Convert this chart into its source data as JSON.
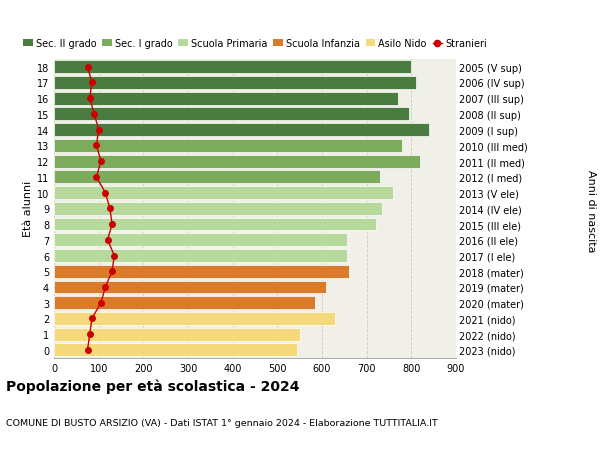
{
  "ages": [
    18,
    17,
    16,
    15,
    14,
    13,
    12,
    11,
    10,
    9,
    8,
    7,
    6,
    5,
    4,
    3,
    2,
    1,
    0
  ],
  "right_labels": [
    "2005 (V sup)",
    "2006 (IV sup)",
    "2007 (III sup)",
    "2008 (II sup)",
    "2009 (I sup)",
    "2010 (III med)",
    "2011 (II med)",
    "2012 (I med)",
    "2013 (V ele)",
    "2014 (IV ele)",
    "2015 (III ele)",
    "2016 (II ele)",
    "2017 (I ele)",
    "2018 (mater)",
    "2019 (mater)",
    "2020 (mater)",
    "2021 (nido)",
    "2022 (nido)",
    "2023 (nido)"
  ],
  "bar_values": [
    800,
    810,
    770,
    795,
    840,
    780,
    820,
    730,
    760,
    735,
    720,
    655,
    655,
    660,
    610,
    585,
    630,
    550,
    545
  ],
  "bar_colors": [
    "#4a7c3f",
    "#4a7c3f",
    "#4a7c3f",
    "#4a7c3f",
    "#4a7c3f",
    "#7dab5e",
    "#7dab5e",
    "#7dab5e",
    "#b8d99c",
    "#b8d99c",
    "#b8d99c",
    "#b8d99c",
    "#b8d99c",
    "#d97b2a",
    "#d97b2a",
    "#d97b2a",
    "#f5d97a",
    "#f5d97a",
    "#f5d97a"
  ],
  "stranieri_values": [
    75,
    85,
    80,
    90,
    100,
    95,
    105,
    95,
    115,
    125,
    130,
    120,
    135,
    130,
    115,
    105,
    85,
    80,
    75
  ],
  "stranieri_color": "#cc0000",
  "legend_items": [
    {
      "label": "Sec. II grado",
      "color": "#4a7c3f"
    },
    {
      "label": "Sec. I grado",
      "color": "#7dab5e"
    },
    {
      "label": "Scuola Primaria",
      "color": "#b8d99c"
    },
    {
      "label": "Scuola Infanzia",
      "color": "#d97b2a"
    },
    {
      "label": "Asilo Nido",
      "color": "#f5d97a"
    },
    {
      "label": "Stranieri",
      "color": "#cc0000"
    }
  ],
  "ylabel_left": "Età alunni",
  "ylabel_right": "Anni di nascita",
  "xlim": [
    0,
    900
  ],
  "xticks": [
    0,
    100,
    200,
    300,
    400,
    500,
    600,
    700,
    800,
    900
  ],
  "title_main": "Popolazione per età scolastica - 2024",
  "title_sub": "COMUNE DI BUSTO ARSIZIO (VA) - Dati ISTAT 1° gennaio 2024 - Elaborazione TUTTITALIA.IT",
  "background_color": "#ffffff",
  "bar_background": "#f0f0e8",
  "grid_color": "#ccccbb"
}
